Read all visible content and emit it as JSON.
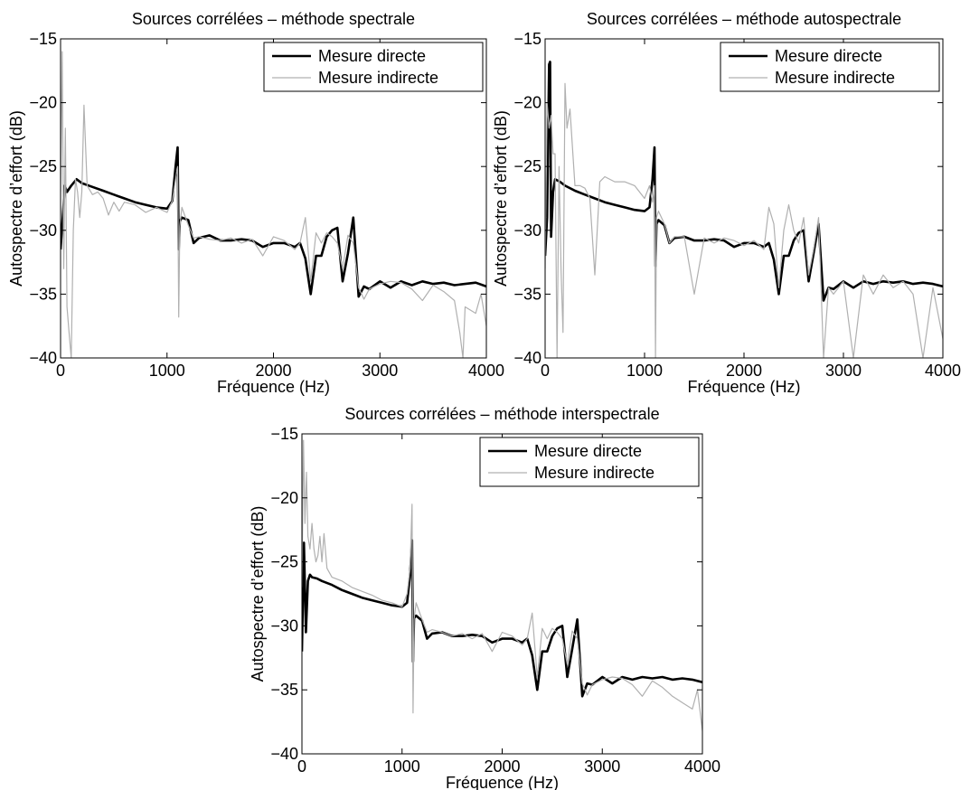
{
  "chart_data": [
    {
      "type": "line",
      "title": "Sources corrélées – méthode spectrale",
      "xlabel": "Fréquence (Hz)",
      "ylabel": "Autospectre d’effort (dB)",
      "xlim": [
        0,
        4000
      ],
      "ylim": [
        -40,
        -15
      ],
      "xticks": [
        0,
        1000,
        2000,
        3000,
        4000
      ],
      "yticks": [
        -40,
        -35,
        -30,
        -25,
        -20,
        -15
      ],
      "xtick_labels": [
        "0",
        "1000",
        "2000",
        "3000",
        "4000"
      ],
      "ytick_labels": [
        "−40",
        "−35",
        "−30",
        "−25",
        "−20",
        "−15"
      ],
      "legend": {
        "position": "top-right"
      },
      "grid": false,
      "series": [
        {
          "name": "Mesure directe",
          "color": "#000000",
          "x": [
            0,
            40,
            60,
            100,
            150,
            200,
            300,
            400,
            500,
            600,
            700,
            800,
            900,
            1000,
            1050,
            1080,
            1100,
            1110,
            1120,
            1140,
            1200,
            1250,
            1300,
            1400,
            1500,
            1600,
            1700,
            1800,
            1900,
            2000,
            2100,
            2200,
            2250,
            2300,
            2350,
            2400,
            2450,
            2500,
            2550,
            2600,
            2650,
            2700,
            2750,
            2800,
            2850,
            2900,
            3000,
            3100,
            3200,
            3300,
            3400,
            3500,
            3600,
            3700,
            3800,
            3900,
            4000
          ],
          "y": [
            -31.5,
            -26.5,
            -27,
            -26.5,
            -26,
            -26.3,
            -26.6,
            -26.9,
            -27.2,
            -27.5,
            -27.8,
            -28,
            -28.2,
            -28.3,
            -27.7,
            -25,
            -23.5,
            -31.5,
            -29.3,
            -29,
            -29.2,
            -31,
            -30.6,
            -30.4,
            -30.8,
            -30.8,
            -30.7,
            -30.8,
            -31.3,
            -31,
            -31,
            -31.3,
            -31,
            -32.2,
            -35,
            -32,
            -32,
            -30.5,
            -30,
            -29.8,
            -34,
            -31.8,
            -29,
            -35.2,
            -34.4,
            -34.6,
            -34,
            -34.5,
            -34,
            -34.3,
            -34,
            -34.2,
            -34.1,
            -34.3,
            -34.2,
            -34.1,
            -34.4
          ]
        },
        {
          "name": "Mesure indirecte",
          "color": "#b0b0b0",
          "x": [
            0,
            15,
            30,
            45,
            60,
            80,
            100,
            120,
            140,
            160,
            180,
            200,
            220,
            250,
            300,
            350,
            400,
            450,
            500,
            550,
            600,
            700,
            800,
            900,
            1000,
            1050,
            1080,
            1100,
            1110,
            1120,
            1140,
            1200,
            1250,
            1300,
            1400,
            1500,
            1600,
            1700,
            1800,
            1900,
            2000,
            2100,
            2200,
            2250,
            2300,
            2350,
            2400,
            2450,
            2500,
            2550,
            2600,
            2650,
            2700,
            2750,
            2800,
            2850,
            2900,
            3000,
            3100,
            3200,
            3300,
            3400,
            3500,
            3600,
            3700,
            3750,
            3780,
            3800,
            3900,
            3950,
            4000
          ],
          "y": [
            -27,
            -16,
            -33,
            -22,
            -36,
            -38,
            -40,
            -30,
            -26,
            -27,
            -29,
            -27,
            -20.2,
            -26.5,
            -27.2,
            -27,
            -27.5,
            -28.8,
            -27.8,
            -28.5,
            -27.8,
            -28,
            -28.6,
            -28.2,
            -28.6,
            -27.7,
            -26,
            -25,
            -36.8,
            -29.7,
            -28.2,
            -29.6,
            -30.6,
            -30.5,
            -30.7,
            -30.8,
            -30.6,
            -31,
            -30.7,
            -32,
            -30.5,
            -30.8,
            -31.5,
            -31,
            -29,
            -34,
            -30.2,
            -31,
            -30.2,
            -30.5,
            -31,
            -33,
            -30.4,
            -31,
            -34.5,
            -35.4,
            -34.6,
            -34.2,
            -34,
            -34.1,
            -34.6,
            -35.5,
            -34.3,
            -34.8,
            -35.5,
            -38,
            -40,
            -36,
            -36.5,
            -35,
            -37.5
          ]
        }
      ]
    },
    {
      "type": "line",
      "title": "Sources corrélées – méthode autospectrale",
      "xlabel": "Fréquence (Hz)",
      "ylabel": "Autospectre d’effort (dB)",
      "xlim": [
        0,
        4000
      ],
      "ylim": [
        -40,
        -15
      ],
      "xticks": [
        0,
        1000,
        2000,
        3000,
        4000
      ],
      "yticks": [
        -40,
        -35,
        -30,
        -25,
        -20,
        -15
      ],
      "xtick_labels": [
        "0",
        "1000",
        "2000",
        "3000",
        "4000"
      ],
      "ytick_labels": [
        "−40",
        "−35",
        "−30",
        "−25",
        "−20",
        "−15"
      ],
      "legend": {
        "position": "top-right"
      },
      "grid": false,
      "series": [
        {
          "name": "Mesure directe",
          "color": "#000000",
          "x": [
            0,
            20,
            40,
            50,
            60,
            80,
            100,
            150,
            200,
            300,
            400,
            500,
            600,
            700,
            800,
            900,
            1000,
            1050,
            1080,
            1100,
            1110,
            1120,
            1140,
            1200,
            1250,
            1300,
            1400,
            1500,
            1600,
            1700,
            1800,
            1900,
            2000,
            2100,
            2200,
            2250,
            2300,
            2350,
            2400,
            2450,
            2500,
            2550,
            2600,
            2650,
            2700,
            2750,
            2800,
            2850,
            2900,
            3000,
            3100,
            3200,
            3300,
            3400,
            3500,
            3600,
            3700,
            3800,
            3900,
            4000
          ],
          "y": [
            -32,
            -29,
            -17,
            -16.8,
            -30.5,
            -27,
            -26,
            -26.2,
            -26.5,
            -26.9,
            -27.2,
            -27.5,
            -27.8,
            -28,
            -28.2,
            -28.4,
            -28.5,
            -28.2,
            -26,
            -23.5,
            -32.8,
            -29.5,
            -29.2,
            -29.6,
            -31,
            -30.6,
            -30.5,
            -30.8,
            -30.8,
            -30.7,
            -30.8,
            -31.3,
            -31,
            -31,
            -31.3,
            -31,
            -32.3,
            -35,
            -32,
            -32,
            -30.8,
            -30.2,
            -30,
            -34,
            -31.8,
            -29.5,
            -35.5,
            -34.5,
            -34.6,
            -34,
            -34.5,
            -34,
            -34.2,
            -34,
            -34.1,
            -34,
            -34.2,
            -34.1,
            -34.2,
            -34.4
          ]
        },
        {
          "name": "Mesure indirecte",
          "color": "#b0b0b0",
          "x": [
            0,
            20,
            40,
            60,
            80,
            100,
            120,
            140,
            160,
            180,
            200,
            220,
            250,
            300,
            350,
            400,
            450,
            500,
            550,
            600,
            700,
            800,
            900,
            1000,
            1050,
            1080,
            1100,
            1110,
            1120,
            1140,
            1200,
            1250,
            1300,
            1400,
            1500,
            1600,
            1700,
            1800,
            1900,
            2000,
            2100,
            2200,
            2250,
            2300,
            2350,
            2400,
            2450,
            2500,
            2550,
            2600,
            2650,
            2700,
            2750,
            2800,
            2850,
            2900,
            3000,
            3100,
            3200,
            3300,
            3400,
            3500,
            3600,
            3700,
            3800,
            3900,
            4000
          ],
          "y": [
            -33,
            -20,
            -22,
            -21,
            -24,
            -24,
            -40,
            -25,
            -33,
            -38,
            -18.5,
            -22,
            -20.5,
            -26.5,
            -26.5,
            -26.7,
            -27.5,
            -33.5,
            -26.2,
            -25.8,
            -26.2,
            -26.2,
            -26.5,
            -27.5,
            -26.5,
            -27.8,
            -26.5,
            -40,
            -29,
            -28.5,
            -29.5,
            -31,
            -30.5,
            -30.5,
            -35,
            -30.6,
            -31,
            -30.6,
            -30.8,
            -31.2,
            -30.8,
            -31.5,
            -28.2,
            -29.5,
            -34.5,
            -30,
            -28,
            -30,
            -31,
            -29,
            -33.5,
            -31.5,
            -29,
            -40,
            -34.5,
            -35,
            -34,
            -40,
            -33.5,
            -35,
            -33.5,
            -34.5,
            -34,
            -35,
            -40,
            -34.5,
            -38.5
          ]
        }
      ]
    },
    {
      "type": "line",
      "title": "Sources corrélées – méthode interspectrale",
      "xlabel": "Fréquence (Hz)",
      "ylabel": "Autospectre d’effort (dB)",
      "xlim": [
        0,
        4000
      ],
      "ylim": [
        -40,
        -15
      ],
      "xticks": [
        0,
        1000,
        2000,
        3000,
        4000
      ],
      "yticks": [
        -40,
        -35,
        -30,
        -25,
        -20,
        -15
      ],
      "xtick_labels": [
        "0",
        "1000",
        "2000",
        "3000",
        "4000"
      ],
      "ytick_labels": [
        "−40",
        "−35",
        "−30",
        "−25",
        "−20",
        "−15"
      ],
      "legend": {
        "position": "top-right"
      },
      "grid": false,
      "series": [
        {
          "name": "Mesure directe",
          "color": "#000000",
          "x": [
            0,
            20,
            40,
            60,
            80,
            100,
            150,
            200,
            300,
            400,
            500,
            600,
            700,
            800,
            900,
            1000,
            1050,
            1080,
            1100,
            1110,
            1120,
            1140,
            1200,
            1250,
            1300,
            1400,
            1500,
            1600,
            1700,
            1800,
            1900,
            2000,
            2100,
            2200,
            2250,
            2300,
            2350,
            2400,
            2450,
            2500,
            2550,
            2600,
            2650,
            2700,
            2750,
            2800,
            2850,
            2900,
            3000,
            3100,
            3200,
            3300,
            3400,
            3500,
            3600,
            3700,
            3800,
            3900,
            4000
          ],
          "y": [
            -32,
            -23.5,
            -30.5,
            -26.5,
            -26,
            -26.2,
            -26.3,
            -26.5,
            -26.8,
            -27.2,
            -27.5,
            -27.8,
            -28,
            -28.2,
            -28.4,
            -28.5,
            -28.2,
            -26,
            -23.3,
            -32.8,
            -29.4,
            -29.2,
            -29.6,
            -31,
            -30.6,
            -30.5,
            -30.8,
            -30.8,
            -30.7,
            -30.8,
            -31.3,
            -31,
            -31,
            -31.3,
            -31,
            -32.3,
            -35,
            -32,
            -32,
            -30.8,
            -30.2,
            -30,
            -34,
            -31.8,
            -29.5,
            -35.5,
            -34.5,
            -34.6,
            -34,
            -34.5,
            -34,
            -34.2,
            -34,
            -34.1,
            -34,
            -34.2,
            -34.1,
            -34.2,
            -34.4
          ]
        },
        {
          "name": "Mesure indirecte",
          "color": "#b0b0b0",
          "x": [
            0,
            15,
            30,
            45,
            60,
            80,
            100,
            120,
            140,
            160,
            180,
            200,
            220,
            250,
            300,
            400,
            500,
            600,
            700,
            800,
            900,
            1000,
            1050,
            1080,
            1100,
            1110,
            1120,
            1140,
            1200,
            1250,
            1300,
            1400,
            1500,
            1600,
            1700,
            1800,
            1900,
            2000,
            2100,
            2200,
            2250,
            2300,
            2350,
            2400,
            2450,
            2500,
            2550,
            2600,
            2650,
            2700,
            2750,
            2800,
            2850,
            2900,
            3000,
            3100,
            3200,
            3300,
            3400,
            3500,
            3600,
            3700,
            3800,
            3900,
            3950,
            4000
          ],
          "y": [
            -27,
            -15.5,
            -22,
            -18,
            -23,
            -24,
            -22,
            -24,
            -25,
            -24.5,
            -23,
            -25,
            -22.8,
            -25.5,
            -26.2,
            -26.5,
            -27,
            -27.3,
            -27.6,
            -28,
            -28.2,
            -28.5,
            -27.5,
            -25.5,
            -20.5,
            -36.8,
            -29.5,
            -28.2,
            -29.5,
            -30.5,
            -30.3,
            -30.5,
            -30.8,
            -30.6,
            -31,
            -30.6,
            -32,
            -30.5,
            -30.8,
            -31.5,
            -31,
            -29,
            -34,
            -30.2,
            -31,
            -30.2,
            -30.5,
            -31,
            -33,
            -30.4,
            -31,
            -34.5,
            -35.4,
            -34.6,
            -34.2,
            -34,
            -34.1,
            -34.6,
            -35.5,
            -34.3,
            -34.8,
            -35.5,
            -36,
            -36.5,
            -35,
            -38.2
          ]
        }
      ]
    }
  ]
}
